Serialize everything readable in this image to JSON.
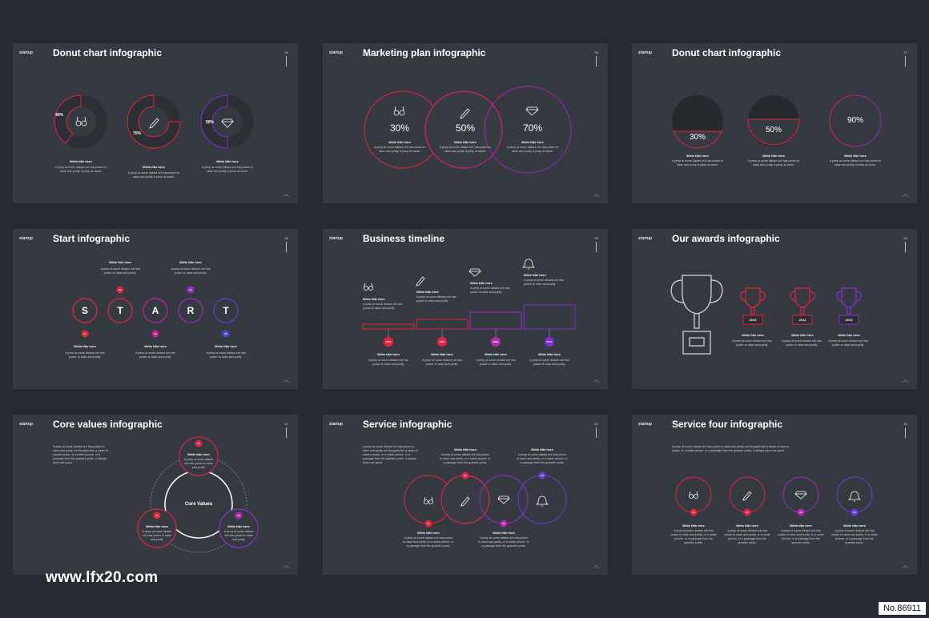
{
  "brand": "startup",
  "common": {
    "write_title": "Write title here",
    "body_a": "A peep at some distant orb has power to raise and purify. A peep at some.",
    "body_b": "A peep at some distant orb has power to raise and purify.",
    "body_c": "A peep at some distant orb has power to raise and purify, or a noble picture, or a passage from the grander poets.",
    "body_long": "A peep at some distant orb has power to raise and purify our thoughts like a strain of sacred music, or a noble picture, or a passage from the grander poets. It always does one good."
  },
  "slides": [
    {
      "title": "Donut chart infographic",
      "number": "55",
      "values": [
        "40%",
        "75%",
        "50%"
      ]
    },
    {
      "title": "Marketing plan infographic",
      "number": "56",
      "values": [
        "30%",
        "50%",
        "70%"
      ]
    },
    {
      "title": "Donut chart infographic",
      "number": "57",
      "values": [
        "30%",
        "50%",
        "90%"
      ]
    },
    {
      "title": "Start infographic",
      "number": "58",
      "letters": [
        "S",
        "T",
        "A",
        "R",
        "T"
      ],
      "badges": [
        "01",
        "02",
        "03",
        "04",
        "05"
      ]
    },
    {
      "title": "Business timeline",
      "number": "59",
      "years": [
        "2021",
        "2022",
        "2023",
        "2024"
      ]
    },
    {
      "title": "Our awards infographic",
      "number": "60",
      "years": [
        "2013",
        "2014",
        "2015"
      ]
    },
    {
      "title": "Core values infographic",
      "number": "61",
      "center": "Core Values",
      "badges": [
        "01",
        "02",
        "03"
      ]
    },
    {
      "title": "Service infographic",
      "number": "62",
      "badges": [
        "01",
        "02",
        "03",
        "04"
      ]
    },
    {
      "title": "Service four infographic",
      "number": "63",
      "badges": [
        "01",
        "02",
        "03",
        "04"
      ]
    }
  ],
  "watermark": "www.lfx20.com",
  "stamp": "No.86911",
  "colors": {
    "bg": "#262b32",
    "slide": "#353a40",
    "red": "#e8243a",
    "magenta": "#c4209a",
    "purple": "#7a2fd0",
    "blue": "#4a46d8"
  },
  "icons": [
    "binoculars-icon",
    "pencil-icon",
    "diamond-icon",
    "bell-icon",
    "trophy-icon"
  ]
}
